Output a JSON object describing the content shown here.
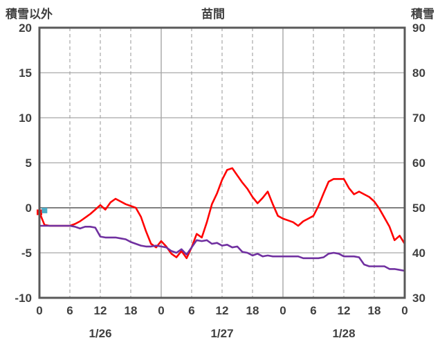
{
  "header": {
    "left_axis_title": "積雪以外",
    "chart_title": "苗間",
    "right_axis_title": "積雪"
  },
  "colors": {
    "text": "#404040",
    "border": "#595959",
    "grid": "#a6a6a6",
    "zero_line": "#808080",
    "red_series": "#ff0000",
    "purple_series": "#7030a0",
    "blue_marker": "#4bacc6",
    "background": "#ffffff"
  },
  "chart_data": {
    "type": "line",
    "title": "苗間",
    "left_axis": {
      "label": "積雪以外",
      "min": -10,
      "max": 20,
      "ticks": [
        20,
        15,
        10,
        5,
        0,
        -5,
        -10
      ]
    },
    "right_axis": {
      "label": "積雪",
      "min": 30,
      "max": 90,
      "ticks": [
        90,
        80,
        70,
        60,
        50,
        40,
        30
      ]
    },
    "x_axis": {
      "hours_min": 0,
      "hours_max": 72,
      "tick_step": 6,
      "tick_labels": [
        "0",
        "6",
        "12",
        "18",
        "0",
        "6",
        "12",
        "18",
        "0",
        "6",
        "12",
        "18",
        "0"
      ],
      "date_labels": [
        {
          "label": "1/26",
          "hour": 12
        },
        {
          "label": "1/27",
          "hour": 36
        },
        {
          "label": "1/28",
          "hour": 60
        }
      ]
    },
    "grid": {
      "horizontal_step": 5,
      "vertical_dashed_hours": [
        6,
        12,
        18,
        30,
        36,
        42,
        54,
        60,
        66
      ],
      "vertical_solid_hours": [
        24,
        48
      ]
    },
    "legend": "none",
    "series": [
      {
        "name": "temperature-non-snow",
        "axis": "left",
        "color": "#ff0000",
        "marker_first_point": true,
        "values": [
          -0.5,
          -1.9,
          -2.0,
          -2.0,
          -2.0,
          -2.0,
          -2.0,
          -1.8,
          -1.5,
          -1.1,
          -0.7,
          -0.2,
          0.3,
          -0.2,
          0.6,
          1.0,
          0.7,
          0.4,
          0.2,
          0.0,
          -1.0,
          -2.6,
          -4.0,
          -4.4,
          -3.7,
          -4.3,
          -5.1,
          -5.5,
          -4.8,
          -5.6,
          -4.4,
          -2.9,
          -3.3,
          -1.6,
          0.4,
          1.6,
          3.1,
          4.2,
          4.4,
          3.6,
          2.8,
          2.1,
          1.2,
          0.5,
          1.1,
          1.8,
          0.4,
          -0.9,
          -1.2,
          -1.4,
          -1.6,
          -2.0,
          -1.5,
          -1.2,
          -0.9,
          0.2,
          1.6,
          2.9,
          3.2,
          3.2,
          3.2,
          2.2,
          1.5,
          1.8,
          1.5,
          1.2,
          0.7,
          -0.1,
          -1.1,
          -2.1,
          -3.6,
          -3.1,
          -4.0
        ]
      },
      {
        "name": "snow-depth",
        "axis": "right",
        "color": "#7030a0",
        "marker_first_point": false,
        "values": [
          46,
          46,
          46,
          46,
          46,
          46,
          46,
          45.8,
          45.4,
          45.8,
          45.8,
          45.6,
          43.6,
          43.4,
          43.4,
          43.4,
          43.2,
          43,
          42.4,
          42,
          41.6,
          41.4,
          41.4,
          41.6,
          41.4,
          41.2,
          40.4,
          40,
          40.8,
          39.6,
          41.2,
          42.8,
          42.6,
          42.8,
          42,
          42.2,
          41.6,
          41.8,
          41.2,
          41.4,
          40.2,
          40,
          39.4,
          39.8,
          39.2,
          39.4,
          39.2,
          39.2,
          39.2,
          39.2,
          39.2,
          39.2,
          38.8,
          38.8,
          38.8,
          38.8,
          39,
          39.8,
          40,
          39.8,
          39.2,
          39.2,
          39.2,
          39,
          37.4,
          37,
          37,
          37,
          37,
          36.4,
          36.4,
          36.2,
          36
        ]
      },
      {
        "name": "blue-point",
        "axis": "left",
        "color": "#4bacc6",
        "points_only": true,
        "points": [
          [
            1,
            -0.3
          ]
        ]
      }
    ]
  }
}
